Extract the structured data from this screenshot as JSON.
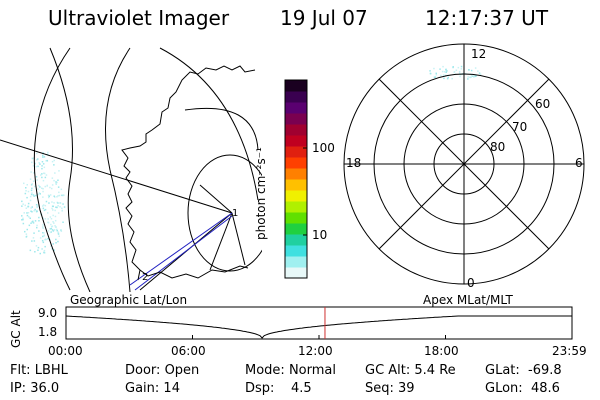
{
  "header": {
    "instrument": "Ultraviolet Imager",
    "date": "19 Jul 07",
    "time": "12:17:37 UT"
  },
  "colorbar": {
    "unit_label": "photon cm⁻²s⁻¹",
    "ticks": [
      "100",
      "10"
    ],
    "colors": [
      "#1a0020",
      "#3a0050",
      "#5a0070",
      "#7a0050",
      "#a00030",
      "#c00020",
      "#e02010",
      "#ff4000",
      "#ff8000",
      "#ffc000",
      "#f0f000",
      "#b0f000",
      "#60e000",
      "#20d040",
      "#20d0a0",
      "#40e0e0",
      "#a0f0f0",
      "#e8f8f8"
    ]
  },
  "left_panel": {
    "label": "Geographic Lat/Lon"
  },
  "right_panel": {
    "label": "Apex MLat/MLT",
    "mlt_labels": {
      "top": "12",
      "left": "18",
      "right": "6",
      "bottom": "0"
    },
    "lat_labels": [
      "60",
      "70",
      "80"
    ]
  },
  "timeline": {
    "ylabel": "GC Alt",
    "ytick_top": "9.0",
    "ytick_bottom": "1.8",
    "xticks": [
      "00:00",
      "06:00",
      "12:00",
      "18:00",
      "23:59"
    ],
    "marker_time": "12:17",
    "marker_color": "#d03030"
  },
  "status": {
    "flt_label": "Flt:",
    "flt_value": "LBHL",
    "ip_label": "IP:",
    "ip_value": "36.0",
    "door_label": "Door:",
    "door_value": "Open",
    "gain_label": "Gain:",
    "gain_value": "14",
    "mode_label": "Mode:",
    "mode_value": "Normal",
    "dsp_label": "Dsp:",
    "dsp_value": "4.5",
    "gcalt_label": "GC Alt:",
    "gcalt_value": "5.4 Re",
    "seq_label": "Seq:",
    "seq_value": "39",
    "glat_label": "GLat:",
    "glat_value": "-69.8",
    "glon_label": "GLon:",
    "glon_value": "48.6"
  }
}
